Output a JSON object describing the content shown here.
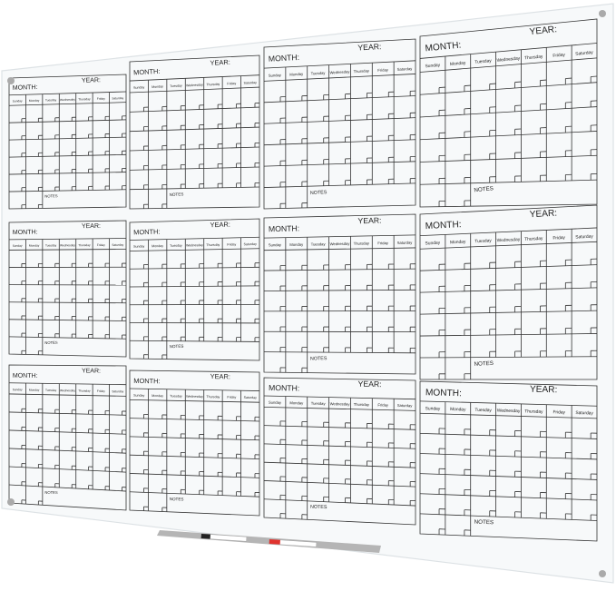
{
  "board": {
    "panel_count": 12,
    "labels": {
      "month": "MONTH:",
      "year": "YEAR:",
      "notes": "NOTES"
    },
    "days": [
      "Sunday",
      "Monday",
      "Tuesday",
      "Wednesday",
      "Thursday",
      "Friday",
      "Saturday"
    ],
    "rows_per_month": 6
  },
  "colors": {
    "glass": "#f7f9fa",
    "lines": "#333333",
    "tray": "#b5b5b5",
    "marker_black": "#222222",
    "marker_red": "#e0332e"
  }
}
